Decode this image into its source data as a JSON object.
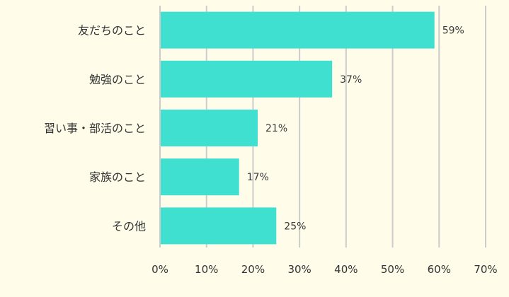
{
  "chart_data": {
    "type": "bar",
    "orientation": "horizontal",
    "categories": [
      "友だちのこと",
      "勉強のこと",
      "習い事・部活のこと",
      "家族のこと",
      "その他"
    ],
    "values": [
      59,
      37,
      21,
      17,
      25
    ],
    "data_labels": [
      "59%",
      "37%",
      "21%",
      "17%",
      "25%"
    ],
    "xlim": [
      0,
      70
    ],
    "x_ticks": [
      0,
      10,
      20,
      30,
      40,
      50,
      60,
      70
    ],
    "x_tick_labels": [
      "0%",
      "10%",
      "20%",
      "30%",
      "40%",
      "50%",
      "60%",
      "70%"
    ],
    "grid": true,
    "legend": false,
    "title": "",
    "xlabel": "",
    "ylabel": "",
    "bar_color": "#40e0d0",
    "grid_color": "#cccccc",
    "background": "#fffdea"
  }
}
